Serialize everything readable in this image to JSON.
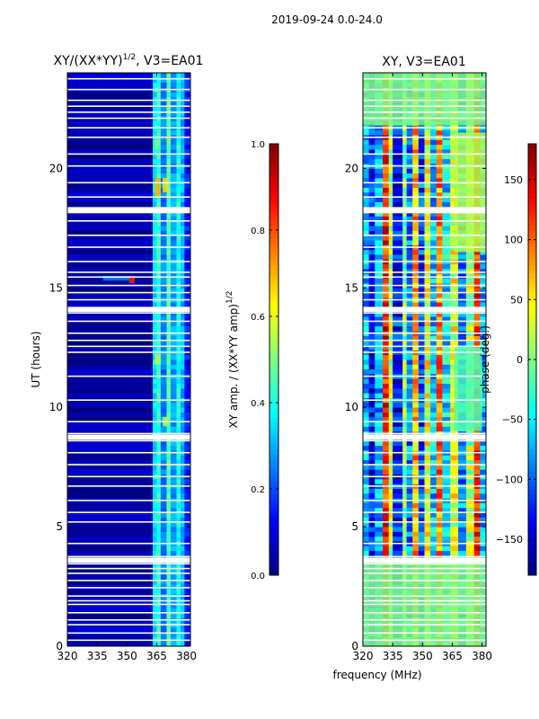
{
  "figure_title": "2019-09-24 0.0-24.0",
  "shared_xlabel": "frequency (MHz)",
  "colors": {
    "jet": [
      "#00007f",
      "#0000ff",
      "#007fff",
      "#00ffff",
      "#7fff7f",
      "#ffff00",
      "#ff7f00",
      "#ff0000",
      "#7f0000"
    ],
    "gap": "#ffffff",
    "frame": "#000000"
  },
  "chart_data": [
    {
      "type": "heatmap",
      "title_main": "XY/(XX*YY)",
      "title_sup": "1/2",
      "title_tail": ", V3=EA01",
      "xlabel": "",
      "ylabel": "UT (hours)",
      "xlim": [
        320,
        382
      ],
      "ylim": [
        0,
        24
      ],
      "xticks": [
        {
          "value": 320,
          "label": "320"
        },
        {
          "value": 335,
          "label": "335"
        },
        {
          "value": 350,
          "label": "350"
        },
        {
          "value": 365,
          "label": "365"
        },
        {
          "value": 380,
          "label": "380"
        }
      ],
      "yticks": [
        {
          "value": 0,
          "label": "0"
        },
        {
          "value": 5,
          "label": "5"
        },
        {
          "value": 10,
          "label": "10"
        },
        {
          "value": 15,
          "label": "15"
        },
        {
          "value": 20,
          "label": "20"
        }
      ],
      "colorbar": {
        "label_main": "XY amp. / (XX*YY amp)",
        "label_sup": "1/2",
        "range": [
          0.0,
          1.0
        ],
        "ticks": [
          {
            "value": 0.0,
            "label": "0.0"
          },
          {
            "value": 0.2,
            "label": "0.2"
          },
          {
            "value": 0.4,
            "label": "0.4"
          },
          {
            "value": 0.6,
            "label": "0.6"
          },
          {
            "value": 0.8,
            "label": "0.8"
          },
          {
            "value": 1.0,
            "label": "1.0"
          }
        ]
      },
      "zones": [
        {
          "from": 320,
          "to": 363,
          "level": 0.04
        },
        {
          "from": 363,
          "to": 365,
          "level": 0.35
        },
        {
          "from": 365,
          "to": 367,
          "level": 0.42
        },
        {
          "from": 367,
          "to": 370,
          "level": 0.25
        },
        {
          "from": 370,
          "to": 372,
          "level": 0.45
        },
        {
          "from": 372,
          "to": 375,
          "level": 0.28
        },
        {
          "from": 375,
          "to": 377,
          "level": 0.4
        },
        {
          "from": 377,
          "to": 379,
          "level": 0.3
        },
        {
          "from": 379,
          "to": 382,
          "level": 0.15
        }
      ],
      "patches": [
        {
          "f0": 364,
          "f1": 367,
          "t0": 18.8,
          "t1": 19.6,
          "level": 0.7
        },
        {
          "f0": 368,
          "f1": 371,
          "t0": 19.0,
          "t1": 19.6,
          "level": 0.65
        },
        {
          "f0": 351,
          "f1": 354,
          "t0": 15.2,
          "t1": 15.5,
          "level": 0.85
        },
        {
          "f0": 338,
          "f1": 351,
          "t0": 15.3,
          "t1": 15.5,
          "level": 0.25
        },
        {
          "f0": 364,
          "f1": 367,
          "t0": 11.8,
          "t1": 12.2,
          "level": 0.55
        },
        {
          "f0": 368,
          "f1": 371,
          "t0": 9.2,
          "t1": 9.6,
          "level": 0.55
        },
        {
          "f0": 364,
          "f1": 366,
          "t0": 20.8,
          "t1": 21.2,
          "level": 0.5
        }
      ]
    },
    {
      "type": "heatmap",
      "title_main": "XY, V3=EA01",
      "title_sup": "",
      "title_tail": "",
      "xlabel": "",
      "ylabel": "",
      "xlim": [
        320,
        382
      ],
      "ylim": [
        0,
        24
      ],
      "xticks": [
        {
          "value": 320,
          "label": "320"
        },
        {
          "value": 335,
          "label": "335"
        },
        {
          "value": 350,
          "label": "350"
        },
        {
          "value": 365,
          "label": "365"
        },
        {
          "value": 380,
          "label": "380"
        }
      ],
      "yticks": [
        {
          "value": 0,
          "label": "0"
        },
        {
          "value": 5,
          "label": "5"
        },
        {
          "value": 10,
          "label": "10"
        },
        {
          "value": 15,
          "label": "15"
        },
        {
          "value": 20,
          "label": "20"
        }
      ],
      "colorbar": {
        "label_main": "phase (deg.)",
        "label_sup": "",
        "range": [
          -180,
          180
        ],
        "ticks": [
          {
            "value": -150,
            "label": "−150"
          },
          {
            "value": -100,
            "label": "−100"
          },
          {
            "value": -50,
            "label": "−50"
          },
          {
            "value": 0,
            "label": "0"
          },
          {
            "value": 50,
            "label": "50"
          },
          {
            "value": 100,
            "label": "100"
          },
          {
            "value": 150,
            "label": "150"
          }
        ]
      },
      "zones": [
        {
          "from": 320,
          "to": 323,
          "level": 0.3
        },
        {
          "from": 323,
          "to": 326,
          "level": 0.15
        },
        {
          "from": 326,
          "to": 330,
          "level": 0.3
        },
        {
          "from": 330,
          "to": 333,
          "level": 0.85
        },
        {
          "from": 333,
          "to": 335,
          "level": 0.55
        },
        {
          "from": 335,
          "to": 340,
          "level": 0.15
        },
        {
          "from": 340,
          "to": 342,
          "level": 0.5
        },
        {
          "from": 342,
          "to": 345,
          "level": 0.25
        },
        {
          "from": 345,
          "to": 348,
          "level": 0.7
        },
        {
          "from": 348,
          "to": 351,
          "level": 0.2
        },
        {
          "from": 351,
          "to": 354,
          "level": 0.6
        },
        {
          "from": 354,
          "to": 357,
          "level": 0.3
        },
        {
          "from": 357,
          "to": 360,
          "level": 0.75
        },
        {
          "from": 360,
          "to": 364,
          "level": 0.35
        },
        {
          "from": 364,
          "to": 368,
          "level": 0.6
        },
        {
          "from": 368,
          "to": 372,
          "level": 0.25
        },
        {
          "from": 372,
          "to": 376,
          "level": 0.55
        },
        {
          "from": 376,
          "to": 379,
          "level": 0.85
        },
        {
          "from": 379,
          "to": 382,
          "level": 0.3
        }
      ],
      "patches": [
        {
          "f0": 366,
          "f1": 382,
          "t0": 16.5,
          "t1": 21.5,
          "level": 0.55
        },
        {
          "f0": 366,
          "f1": 380,
          "t0": 9.0,
          "t1": 12.5,
          "level": 0.45
        },
        {
          "f0": 320,
          "f1": 382,
          "t0": 21.8,
          "t1": 24.0,
          "level": 0.5
        },
        {
          "f0": 320,
          "f1": 382,
          "t0": 0.0,
          "t1": 3.6,
          "level": 0.5
        }
      ]
    }
  ]
}
